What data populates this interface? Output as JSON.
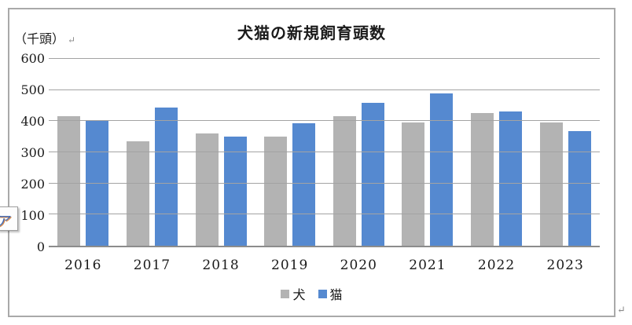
{
  "chart": {
    "units_label": "（千頭）"
  },
  "marks": {
    "paragraph_mark": "↵",
    "ime_char": "ア"
  },
  "chart_data": {
    "type": "bar",
    "title": "犬猫の新規飼育頭数",
    "categories": [
      "2016",
      "2017",
      "2018",
      "2019",
      "2020",
      "2021",
      "2022",
      "2023"
    ],
    "series": [
      {
        "name": "犬",
        "color": "#b3b3b3",
        "values": [
          416,
          335,
          360,
          350,
          416,
          397,
          426,
          397
        ]
      },
      {
        "name": "猫",
        "color": "#5589d0",
        "values": [
          401,
          443,
          350,
          394,
          460,
          489,
          432,
          369
        ]
      }
    ],
    "ylabel": "（千頭）",
    "ylim": [
      0,
      600
    ],
    "yticks": [
      0,
      100,
      200,
      300,
      400,
      500,
      600
    ],
    "grid": true,
    "legend_position": "bottom"
  },
  "colors": {
    "bar_dog": "#b3b3b3",
    "bar_cat": "#5589d0",
    "gridline": "#a3a3a3",
    "axis_line": "#8c8c8c",
    "frame_border": "#a9a9a9"
  }
}
